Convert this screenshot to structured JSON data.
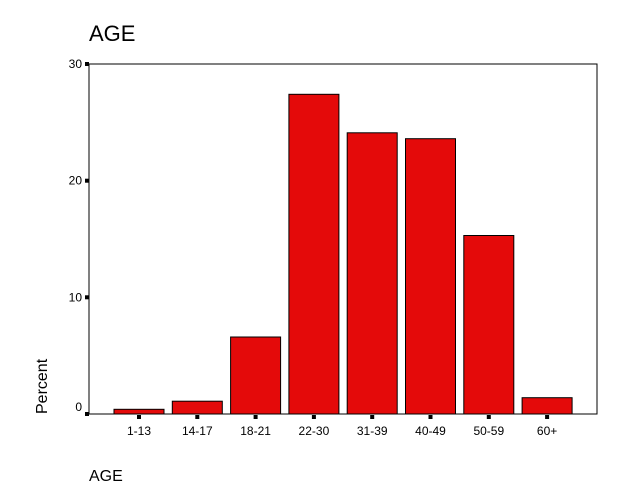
{
  "chart_data": {
    "type": "bar",
    "title": "AGE",
    "xlabel": "AGE",
    "ylabel": "Percent",
    "categories": [
      "1-13",
      "14-17",
      "18-21",
      "22-30",
      "31-39",
      "40-49",
      "50-59",
      "60+"
    ],
    "values": [
      0.4,
      1.1,
      6.6,
      27.4,
      24.1,
      23.6,
      15.3,
      1.4
    ],
    "ylim": [
      0,
      30
    ],
    "yticks": [
      "0",
      "10",
      "20",
      "30"
    ],
    "grid": false,
    "legend": "none",
    "colors": {
      "bar_fill": "#e40a0a",
      "bar_stroke": "#000000",
      "axis": "#000000",
      "background": "#ffffff"
    }
  }
}
